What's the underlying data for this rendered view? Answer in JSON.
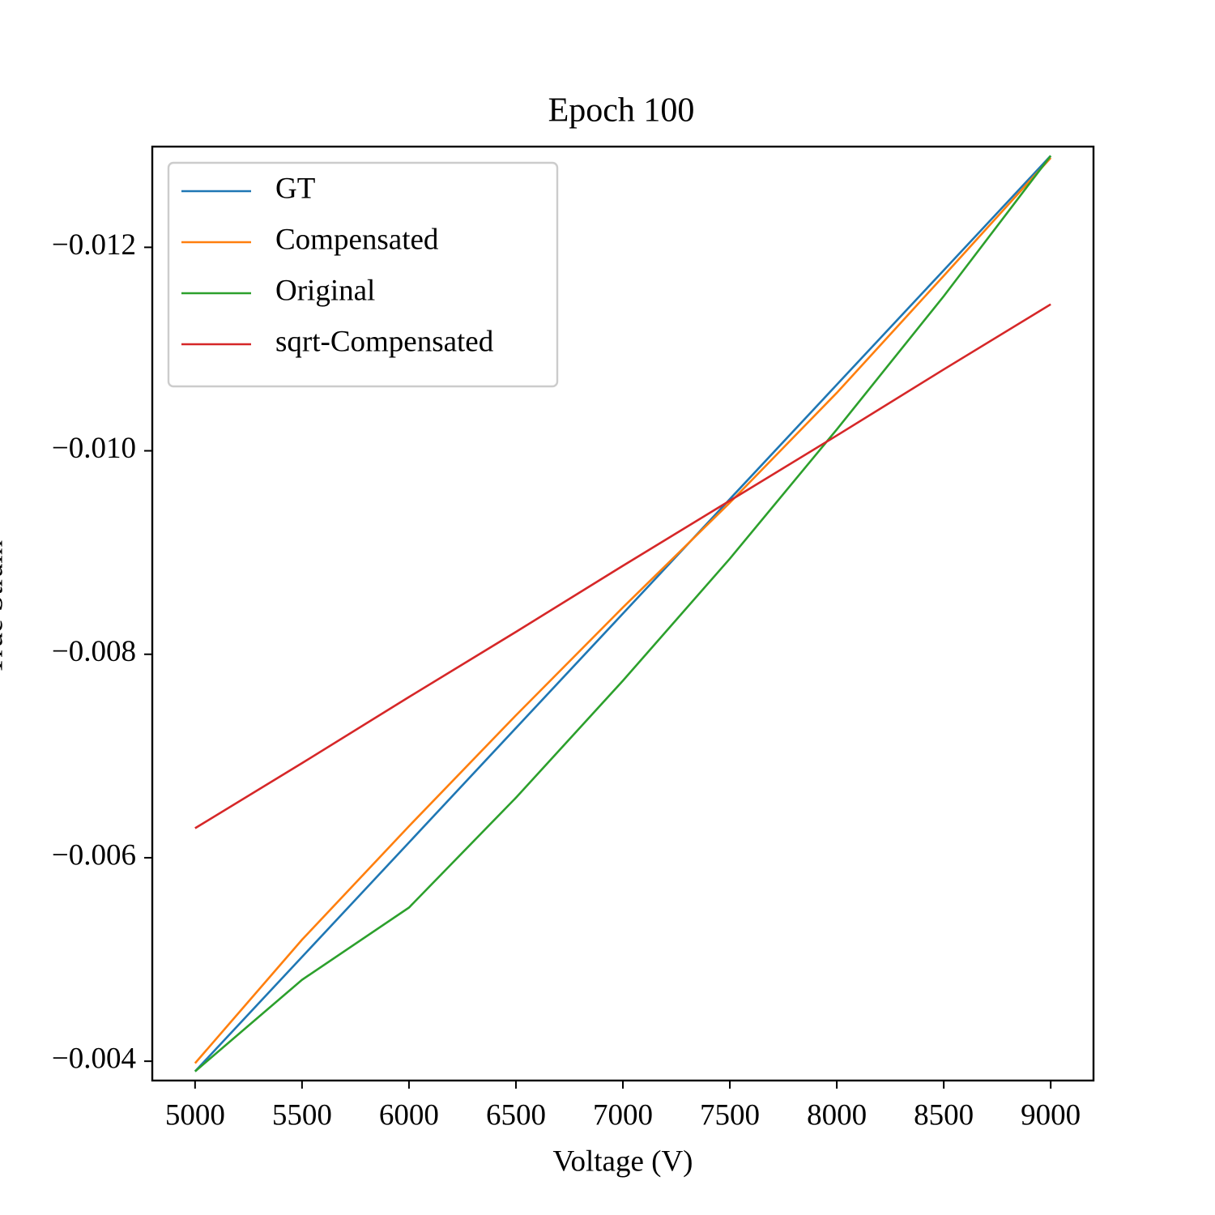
{
  "chart_data": {
    "type": "line",
    "title": "Epoch 100",
    "x_label": "Voltage (V)",
    "y_label": "True Strain",
    "x": [
      5000,
      5500,
      6000,
      6500,
      7000,
      7500,
      8000,
      8500,
      9000
    ],
    "series": [
      {
        "name": "GT",
        "color": "#1f77b4",
        "values": [
          -0.0039,
          -0.005025,
          -0.00615,
          -0.007275,
          -0.0084,
          -0.009525,
          -0.01065,
          -0.011775,
          -0.0129
        ]
      },
      {
        "name": "Compensated",
        "color": "#ff7f0e",
        "values": [
          -0.00398,
          -0.005194,
          -0.00631,
          -0.0074,
          -0.00846,
          -0.00949,
          -0.01057,
          -0.01172,
          -0.01288
        ]
      },
      {
        "name": "Original",
        "color": "#2ca02c",
        "values": [
          -0.0039,
          -0.0048,
          -0.00551,
          -0.00659,
          -0.00774,
          -0.00894,
          -0.01021,
          -0.01152,
          -0.0129
        ]
      },
      {
        "name": "sqrt-Compensated",
        "color": "#d62728",
        "values": [
          -0.00629,
          -0.00693,
          -0.00758,
          -0.00822,
          -0.00887,
          -0.00951,
          -0.01015,
          -0.0108,
          -0.01144
        ]
      }
    ],
    "xlim": [
      4800,
      9200
    ],
    "xticks": [
      5000,
      5500,
      6000,
      6500,
      7000,
      7500,
      8000,
      8500,
      9000
    ],
    "ylim": [
      -0.00381,
      -0.01299
    ],
    "yticks": [
      {
        "value": -0.004,
        "label": "−0.004"
      },
      {
        "value": -0.006,
        "label": "−0.006"
      },
      {
        "value": -0.008,
        "label": "−0.008"
      },
      {
        "value": -0.01,
        "label": "−0.010"
      },
      {
        "value": -0.012,
        "label": "−0.012"
      }
    ],
    "grid": false,
    "legend": "upper left"
  }
}
